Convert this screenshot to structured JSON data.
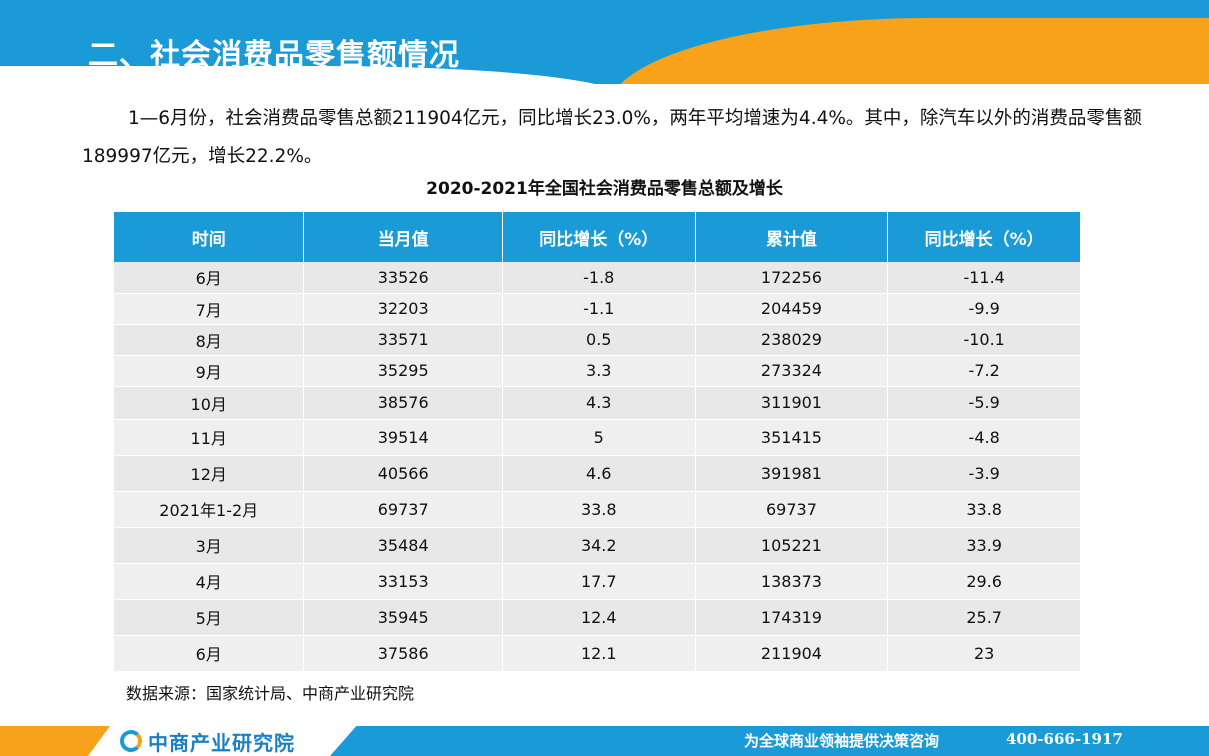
{
  "header": {
    "title": "二、社会消费品零售额情况"
  },
  "intro": "1—6月份，社会消费品零售总额211904亿元，同比增长23.0%，两年平均增速为4.4%。其中，除汽车以外的消费品零售额189997亿元，增长22.2%。",
  "table_title": "2020-2021年全国社会消费品零售总额及增长",
  "columns": [
    "时间",
    "当月值",
    "同比增长（%）",
    "累计值",
    "同比增长（%）"
  ],
  "rows": [
    [
      "6月",
      "33526",
      "-1.8",
      "172256",
      "-11.4"
    ],
    [
      "7月",
      "32203",
      "-1.1",
      "204459",
      "-9.9"
    ],
    [
      "8月",
      "33571",
      "0.5",
      "238029",
      "-10.1"
    ],
    [
      "9月",
      "35295",
      "3.3",
      "273324",
      "-7.2"
    ],
    [
      "10月",
      "38576",
      "4.3",
      "311901",
      "-5.9"
    ],
    [
      "11月",
      "39514",
      "5",
      "351415",
      "-4.8"
    ],
    [
      "12月",
      "40566",
      "4.6",
      "391981",
      "-3.9"
    ],
    [
      "2021年1-2月",
      "69737",
      "33.8",
      "69737",
      "33.8"
    ],
    [
      "3月",
      "35484",
      "34.2",
      "105221",
      "33.9"
    ],
    [
      "4月",
      "33153",
      "17.7",
      "138373",
      "29.6"
    ],
    [
      "5月",
      "35945",
      "12.4",
      "174319",
      "25.7"
    ],
    [
      "6月",
      "37586",
      "12.1",
      "211904",
      "23"
    ]
  ],
  "source": "数据来源：国家统计局、中商产业研究院",
  "footer": {
    "logo_text": "中商产业研究院",
    "slogan": "为全球商业领袖提供决策咨询",
    "phone": "400-666-1917"
  },
  "colors": {
    "primary_blue": "#1a9ad6",
    "accent_orange": "#f7a21a"
  }
}
